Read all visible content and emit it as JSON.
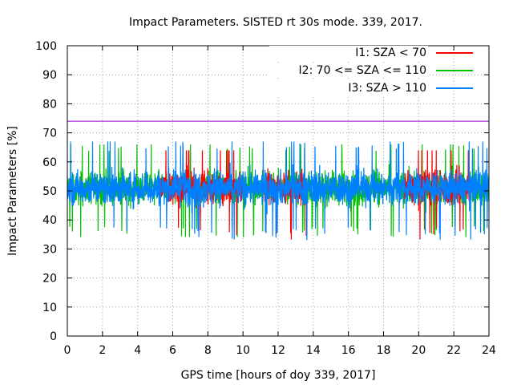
{
  "chart_data": {
    "type": "line",
    "title": "Impact Parameters. SISTED rt 30s mode. 339, 2017.",
    "xlabel": "GPS time [hours of doy 339, 2017]",
    "ylabel": "Impact Parameters [%]",
    "xlim": [
      0,
      24
    ],
    "ylim": [
      0,
      100
    ],
    "x_ticks": [
      0,
      2,
      4,
      6,
      8,
      10,
      12,
      14,
      16,
      18,
      20,
      22,
      24
    ],
    "y_ticks": [
      0,
      10,
      20,
      30,
      40,
      50,
      60,
      70,
      80,
      90,
      100
    ],
    "grid": true,
    "legend_position": "top-right",
    "reference_line": {
      "y": 74,
      "color": "#9400d3"
    },
    "series": [
      {
        "name": "I1: SZA < 70",
        "color": "#ff0000",
        "mean": 51,
        "range": [
          33,
          64
        ],
        "active_hours": [
          [
            5.3,
            7.3
          ],
          [
            7.3,
            10.0
          ],
          [
            11.2,
            13.6
          ],
          [
            19.2,
            22.9
          ]
        ]
      },
      {
        "name": "I2: 70 <= SZA <= 110",
        "color": "#00c000",
        "mean": 51,
        "range": [
          34,
          66
        ],
        "active_hours": [
          [
            0,
            24
          ]
        ]
      },
      {
        "name": "I3: SZA > 110",
        "color": "#0080ff",
        "mean": 51,
        "range": [
          33,
          67
        ],
        "active_hours": [
          [
            0,
            24
          ]
        ]
      }
    ]
  }
}
